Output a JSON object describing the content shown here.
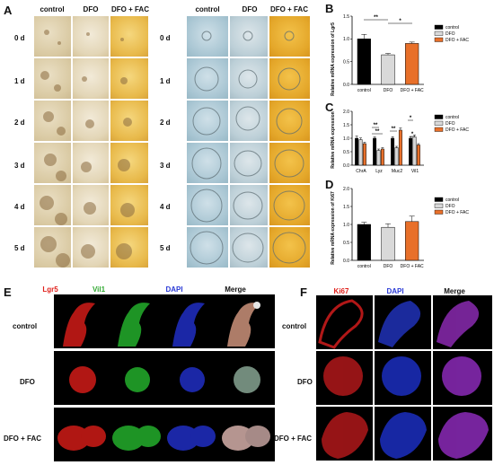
{
  "panel_labels": {
    "A": "A",
    "B": "B",
    "C": "C",
    "D": "D",
    "E": "E",
    "F": "F"
  },
  "groups": [
    "control",
    "DFO",
    "DFO + FAC"
  ],
  "days": [
    "0 d",
    "1 d",
    "2 d",
    "3 d",
    "4 d",
    "5 d"
  ],
  "panelE": {
    "channels": [
      "Lgr5",
      "Vil1",
      "DAPI",
      "Merge"
    ],
    "rows": [
      "control",
      "DFO",
      "DFO + FAC"
    ]
  },
  "panelF": {
    "channels": [
      "Ki67",
      "DAPI",
      "Merge"
    ],
    "rows": [
      "control",
      "DFO",
      "DFO + FAC"
    ]
  },
  "colors": {
    "control": "#000000",
    "DFO": "#d9d9d9",
    "DFO + FAC": "#e8702a",
    "lgr5": "#e0201b",
    "vil1": "#2fa82f",
    "dapi": "#2a3ad6"
  },
  "chart_data": [
    {
      "type": "bar",
      "ylabel": "Relative mRNA expression of Lgr5",
      "categories": [
        "control",
        "DFO",
        "DFO + FAC"
      ],
      "values": [
        1.0,
        0.65,
        0.9
      ],
      "errors": [
        0.1,
        0.03,
        0.03
      ],
      "yticks": [
        "0.0",
        "0.5",
        "1.0",
        "1.5"
      ],
      "ylim": [
        0,
        1.5
      ],
      "annotations": [
        "**",
        "*"
      ],
      "legend": [
        "control",
        "DFO",
        "DFO + FAC"
      ],
      "legend_position": "top-right"
    },
    {
      "type": "bar",
      "ylabel": "Relative mRNA expression",
      "categories": [
        "ChrA",
        "Lyz",
        "Muc2",
        "Vil1"
      ],
      "series": [
        {
          "name": "control",
          "values": [
            1.0,
            1.0,
            1.0,
            1.0
          ],
          "errors": [
            0.08,
            0.05,
            0.06,
            0.05
          ]
        },
        {
          "name": "DFO",
          "values": [
            0.95,
            0.55,
            0.65,
            1.05
          ],
          "errors": [
            0.06,
            0.05,
            0.05,
            0.07
          ]
        },
        {
          "name": "DFO + FAC",
          "values": [
            0.8,
            0.6,
            1.3,
            0.75
          ],
          "errors": [
            0.05,
            0.05,
            0.08,
            0.05
          ]
        }
      ],
      "yticks": [
        "0.0",
        "0.5",
        "1.0",
        "1.5",
        "2.0"
      ],
      "ylim": [
        0,
        2.0
      ],
      "annotations": [
        "**",
        "**",
        "**",
        "*",
        "*"
      ],
      "legend": [
        "control",
        "DFO",
        "DFO + FAC"
      ],
      "legend_position": "top-right"
    },
    {
      "type": "bar",
      "ylabel": "Relative mRNA expression of Ki67",
      "categories": [
        "control",
        "DFO",
        "DFO + FAC"
      ],
      "values": [
        1.0,
        0.92,
        1.08
      ],
      "errors": [
        0.06,
        0.1,
        0.15
      ],
      "yticks": [
        "0.0",
        "0.5",
        "1.0",
        "1.5",
        "2.0"
      ],
      "ylim": [
        0,
        2.0
      ],
      "legend": [
        "control",
        "DFO",
        "DFO + FAC"
      ],
      "legend_position": "top-right"
    }
  ]
}
